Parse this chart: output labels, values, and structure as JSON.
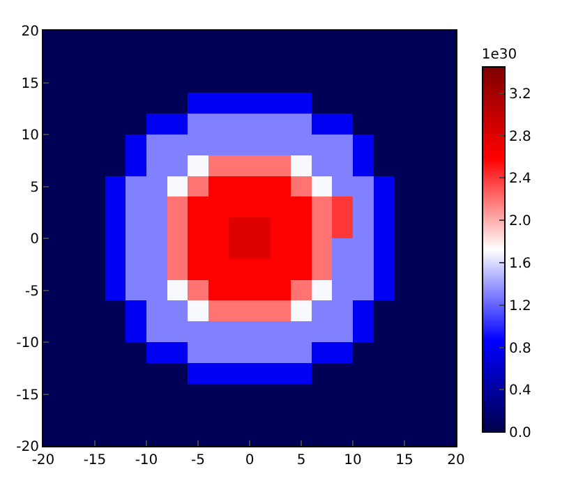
{
  "chart_data": {
    "type": "heatmap",
    "xlim": [
      -20,
      20
    ],
    "ylim": [
      -20,
      20
    ],
    "xticks": [
      -20,
      -15,
      -10,
      -5,
      0,
      5,
      10,
      15,
      20
    ],
    "yticks": [
      -20,
      -15,
      -10,
      -5,
      0,
      5,
      10,
      15,
      20
    ],
    "clim": [
      0,
      3.45
    ],
    "cticks": [
      {
        "value": 0,
        "label": "0.0"
      },
      {
        "value": 0.4,
        "label": "0.4"
      },
      {
        "value": 0.8,
        "label": "0.8"
      },
      {
        "value": 1.2,
        "label": "1.2"
      },
      {
        "value": 1.6,
        "label": "1.6"
      },
      {
        "value": 2.0,
        "label": "2.0"
      },
      {
        "value": 2.4,
        "label": "2.4"
      },
      {
        "value": 2.8,
        "label": "2.8"
      },
      {
        "value": 3.2,
        "label": "3.2"
      }
    ],
    "clabel": "1e30",
    "cells": [
      [
        0.05,
        0.05,
        0.05,
        0.05,
        0.05,
        0.05,
        0.05,
        0.05,
        0.05,
        0.05,
        0.05,
        0.05,
        0.05,
        0.05,
        0.05,
        0.05,
        0.05,
        0.05,
        0.05,
        0.05
      ],
      [
        0.05,
        0.05,
        0.05,
        0.05,
        0.05,
        0.05,
        0.05,
        0.05,
        0.05,
        0.05,
        0.05,
        0.05,
        0.05,
        0.05,
        0.05,
        0.05,
        0.05,
        0.05,
        0.05,
        0.05
      ],
      [
        0.05,
        0.05,
        0.05,
        0.05,
        0.05,
        0.05,
        0.05,
        0.05,
        0.05,
        0.05,
        0.05,
        0.05,
        0.05,
        0.05,
        0.05,
        0.05,
        0.05,
        0.05,
        0.05,
        0.05
      ],
      [
        0.05,
        0.05,
        0.05,
        0.05,
        0.05,
        0.05,
        0.05,
        0.8,
        0.8,
        0.8,
        0.8,
        0.8,
        0.8,
        0.05,
        0.05,
        0.05,
        0.05,
        0.05,
        0.05,
        0.05
      ],
      [
        0.05,
        0.05,
        0.05,
        0.05,
        0.05,
        0.8,
        0.8,
        1.3,
        1.3,
        1.3,
        1.3,
        1.3,
        1.3,
        0.8,
        0.8,
        0.05,
        0.05,
        0.05,
        0.05,
        0.05
      ],
      [
        0.05,
        0.05,
        0.05,
        0.05,
        0.8,
        1.3,
        1.3,
        1.3,
        1.3,
        1.3,
        1.3,
        1.3,
        1.3,
        1.3,
        1.3,
        0.8,
        0.05,
        0.05,
        0.05,
        0.05
      ],
      [
        0.05,
        0.05,
        0.05,
        0.05,
        0.8,
        1.3,
        1.3,
        1.7,
        2.2,
        2.2,
        2.2,
        2.2,
        1.7,
        1.3,
        1.3,
        0.8,
        0.05,
        0.05,
        0.05,
        0.05
      ],
      [
        0.05,
        0.05,
        0.05,
        0.8,
        1.3,
        1.3,
        1.7,
        2.2,
        2.6,
        2.6,
        2.6,
        2.6,
        2.2,
        1.7,
        1.3,
        1.3,
        0.8,
        0.05,
        0.05,
        0.05
      ],
      [
        0.05,
        0.05,
        0.05,
        0.8,
        1.3,
        1.3,
        2.2,
        2.6,
        2.6,
        2.6,
        2.6,
        2.6,
        2.6,
        2.2,
        2.4,
        1.3,
        0.8,
        0.05,
        0.05,
        0.05
      ],
      [
        0.05,
        0.05,
        0.05,
        0.8,
        1.3,
        1.3,
        2.2,
        2.6,
        2.6,
        2.8,
        2.8,
        2.6,
        2.6,
        2.2,
        2.4,
        1.3,
        0.8,
        0.05,
        0.05,
        0.05
      ],
      [
        0.05,
        0.05,
        0.05,
        0.8,
        1.3,
        1.3,
        2.2,
        2.6,
        2.6,
        2.8,
        2.8,
        2.6,
        2.6,
        2.2,
        1.3,
        1.3,
        0.8,
        0.05,
        0.05,
        0.05
      ],
      [
        0.05,
        0.05,
        0.05,
        0.8,
        1.3,
        1.3,
        2.2,
        2.6,
        2.6,
        2.6,
        2.6,
        2.6,
        2.6,
        2.2,
        1.3,
        1.3,
        0.8,
        0.05,
        0.05,
        0.05
      ],
      [
        0.05,
        0.05,
        0.05,
        0.8,
        1.3,
        1.3,
        1.7,
        2.2,
        2.6,
        2.6,
        2.6,
        2.6,
        2.2,
        1.7,
        1.3,
        1.3,
        0.8,
        0.05,
        0.05,
        0.05
      ],
      [
        0.05,
        0.05,
        0.05,
        0.05,
        0.8,
        1.3,
        1.3,
        1.7,
        2.2,
        2.2,
        2.2,
        2.2,
        1.7,
        1.3,
        1.3,
        0.8,
        0.05,
        0.05,
        0.05,
        0.05
      ],
      [
        0.05,
        0.05,
        0.05,
        0.05,
        0.8,
        1.3,
        1.3,
        1.3,
        1.3,
        1.3,
        1.3,
        1.3,
        1.3,
        1.3,
        1.3,
        0.8,
        0.05,
        0.05,
        0.05,
        0.05
      ],
      [
        0.05,
        0.05,
        0.05,
        0.05,
        0.05,
        0.8,
        0.8,
        1.3,
        1.3,
        1.3,
        1.3,
        1.3,
        1.3,
        0.8,
        0.8,
        0.05,
        0.05,
        0.05,
        0.05,
        0.05
      ],
      [
        0.05,
        0.05,
        0.05,
        0.05,
        0.05,
        0.05,
        0.05,
        0.8,
        0.8,
        0.8,
        0.8,
        0.8,
        0.8,
        0.05,
        0.05,
        0.05,
        0.05,
        0.05,
        0.05,
        0.05
      ],
      [
        0.05,
        0.05,
        0.05,
        0.05,
        0.05,
        0.05,
        0.05,
        0.05,
        0.05,
        0.05,
        0.05,
        0.05,
        0.05,
        0.05,
        0.05,
        0.05,
        0.05,
        0.05,
        0.05,
        0.05
      ],
      [
        0.05,
        0.05,
        0.05,
        0.05,
        0.05,
        0.05,
        0.05,
        0.05,
        0.05,
        0.05,
        0.05,
        0.05,
        0.05,
        0.05,
        0.05,
        0.05,
        0.05,
        0.05,
        0.05,
        0.05
      ],
      [
        0.05,
        0.05,
        0.05,
        0.05,
        0.05,
        0.05,
        0.05,
        0.05,
        0.05,
        0.05,
        0.05,
        0.05,
        0.05,
        0.05,
        0.05,
        0.05,
        0.05,
        0.05,
        0.05,
        0.05
      ]
    ]
  }
}
